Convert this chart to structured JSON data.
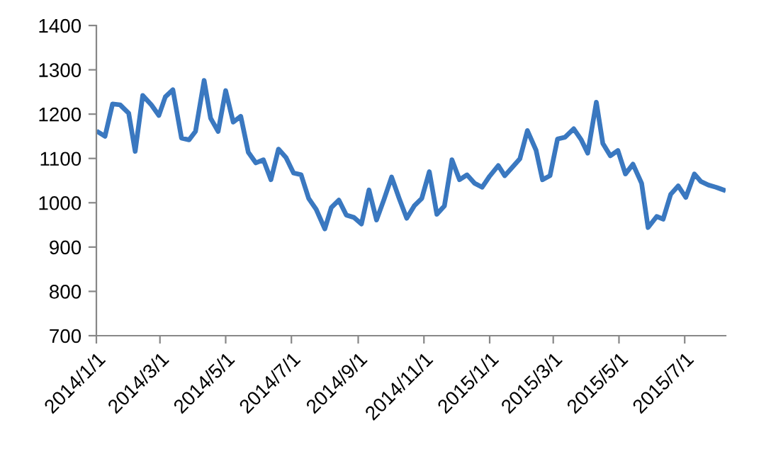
{
  "chart_data": {
    "type": "line",
    "x": [
      "2014-01-03",
      "2014-01-09",
      "2014-01-16",
      "2014-01-23",
      "2014-01-31",
      "2014-02-06",
      "2014-02-13",
      "2014-02-21",
      "2014-02-28",
      "2014-03-06",
      "2014-03-13",
      "2014-03-21",
      "2014-03-28",
      "2014-04-03",
      "2014-04-11",
      "2014-04-17",
      "2014-04-24",
      "2014-05-01",
      "2014-05-08",
      "2014-05-15",
      "2014-05-22",
      "2014-05-29",
      "2014-06-05",
      "2014-06-12",
      "2014-06-19",
      "2014-06-26",
      "2014-07-03",
      "2014-07-10",
      "2014-07-17",
      "2014-07-24",
      "2014-08-01",
      "2014-08-07",
      "2014-08-14",
      "2014-08-21",
      "2014-08-28",
      "2014-09-04",
      "2014-09-11",
      "2014-09-18",
      "2014-09-25",
      "2014-10-02",
      "2014-10-09",
      "2014-10-16",
      "2014-10-23",
      "2014-10-30",
      "2014-11-06",
      "2014-11-13",
      "2014-11-20",
      "2014-11-27",
      "2014-12-04",
      "2014-12-11",
      "2014-12-18",
      "2014-12-25",
      "2015-01-01",
      "2015-01-09",
      "2015-01-15",
      "2015-01-22",
      "2015-01-29",
      "2015-02-05",
      "2015-02-13",
      "2015-02-19",
      "2015-02-26",
      "2015-03-05",
      "2015-03-12",
      "2015-03-20",
      "2015-03-27",
      "2015-04-02",
      "2015-04-10",
      "2015-04-16",
      "2015-04-23",
      "2015-04-30",
      "2015-05-07",
      "2015-05-14",
      "2015-05-22",
      "2015-05-28",
      "2015-06-05",
      "2015-06-11",
      "2015-06-18",
      "2015-06-25",
      "2015-07-02",
      "2015-07-10",
      "2015-07-16",
      "2015-07-23",
      "2015-07-30",
      "2015-08-06"
    ],
    "series": [
      {
        "color": "#3a78c0",
        "values": [
          1159,
          1150,
          1223,
          1221,
          1202,
          1116,
          1242,
          1221,
          1197,
          1239,
          1255,
          1146,
          1142,
          1161,
          1276,
          1191,
          1161,
          1253,
          1182,
          1195,
          1114,
          1090,
          1097,
          1052,
          1121,
          1102,
          1067,
          1063,
          1010,
          985,
          941,
          989,
          1006,
          972,
          967,
          952,
          1029,
          961,
          1008,
          1058,
          1010,
          965,
          993,
          1010,
          1070,
          974,
          993,
          1097,
          1052,
          1063,
          1044,
          1035,
          1060,
          1084,
          1061,
          1080,
          1099,
          1163,
          1119,
          1052,
          1061,
          1144,
          1148,
          1167,
          1142,
          1112,
          1227,
          1134,
          1106,
          1118,
          1065,
          1087,
          1044,
          944,
          969,
          963,
          1019,
          1038,
          1012,
          1065,
          1048,
          1040,
          1035,
          1029
        ]
      }
    ],
    "xlim": [
      "2014-01-01",
      "2015-08-08"
    ],
    "xticks": [
      {
        "value": "2014-01-01",
        "label": "2014/1/1"
      },
      {
        "value": "2014-03-01",
        "label": "2014/3/1"
      },
      {
        "value": "2014-05-01",
        "label": "2014/5/1"
      },
      {
        "value": "2014-07-01",
        "label": "2014/7/1"
      },
      {
        "value": "2014-09-01",
        "label": "2014/9/1"
      },
      {
        "value": "2014-11-01",
        "label": "2014/11/1"
      },
      {
        "value": "2015-01-01",
        "label": "2015/1/1"
      },
      {
        "value": "2015-03-01",
        "label": "2015/3/1"
      },
      {
        "value": "2015-05-01",
        "label": "2015/5/1"
      },
      {
        "value": "2015-07-01",
        "label": "2015/7/1"
      }
    ],
    "ylim": [
      700,
      1400
    ],
    "yticks": [
      700,
      800,
      900,
      1000,
      1100,
      1200,
      1300,
      1400
    ],
    "grid": false,
    "legend": false,
    "marker": "none",
    "line_style": "solid"
  }
}
